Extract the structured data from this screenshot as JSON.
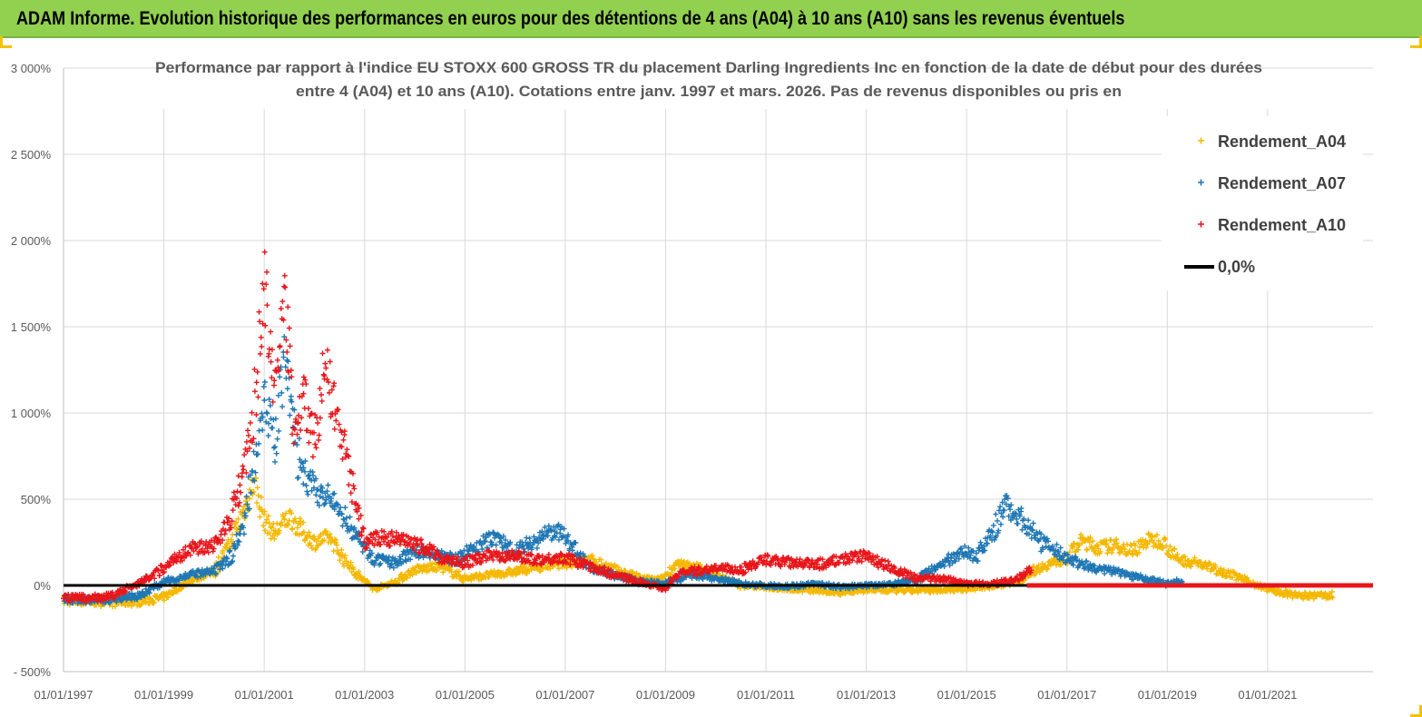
{
  "banner": {
    "title": "ADAM Informe. Evolution historique des performances en euros pour des détentions de 4 ans (A04) à 10 ans (A10) sans les revenus éventuels"
  },
  "colors": {
    "banner": "#92d050",
    "a04": "#f5b800",
    "a07": "#1f77b4",
    "a10": "#e8161b",
    "zero": "#000000"
  },
  "chart_data": {
    "type": "scatter",
    "title_lines": [
      "Performance par rapport à l'indice EU STOXX 600 GROSS TR  du placement Darling Ingredients Inc en fonction de la date de début pour des durées",
      "entre 4 (A04) et 10 ans (A10).  Cotations entre janv. 1997 et mars. 2026.  Pas de  revenus disponibles ou pris en"
    ],
    "xlim": [
      1997.0,
      2023.1
    ],
    "ylim": [
      -500,
      3000
    ],
    "y_ticks": [
      {
        "value": -500,
        "label": "- 500%"
      },
      {
        "value": 0,
        "label": "0%"
      },
      {
        "value": 500,
        "label": "500%"
      },
      {
        "value": 1000,
        "label": "1 000%"
      },
      {
        "value": 1500,
        "label": "1 500%"
      },
      {
        "value": 2000,
        "label": "2 000%"
      },
      {
        "value": 2500,
        "label": "2 500%"
      },
      {
        "value": 3000,
        "label": "3 000%"
      }
    ],
    "x_ticks": [
      {
        "value": 1997,
        "label": "01/01/1997"
      },
      {
        "value": 1999,
        "label": "01/01/1999"
      },
      {
        "value": 2001,
        "label": "01/01/2001"
      },
      {
        "value": 2003,
        "label": "01/01/2003"
      },
      {
        "value": 2005,
        "label": "01/01/2005"
      },
      {
        "value": 2007,
        "label": "01/01/2007"
      },
      {
        "value": 2009,
        "label": "01/01/2009"
      },
      {
        "value": 2011,
        "label": "01/01/2011"
      },
      {
        "value": 2013,
        "label": "01/01/2013"
      },
      {
        "value": 2015,
        "label": "01/01/2015"
      },
      {
        "value": 2017,
        "label": "01/01/2017"
      },
      {
        "value": 2019,
        "label": "01/01/2019"
      },
      {
        "value": 2021,
        "label": "01/01/2021"
      }
    ],
    "series": [
      {
        "name": "Rendement_A04",
        "color_key": "a04",
        "x": [
          1997.0,
          1997.5,
          1998.0,
          1998.5,
          1999.0,
          1999.5,
          2000.0,
          2000.4,
          2000.8,
          2001.0,
          2001.2,
          2001.5,
          2001.8,
          2002.0,
          2002.3,
          2002.6,
          2002.9,
          2003.2,
          2003.6,
          2004.0,
          2004.5,
          2005.0,
          2005.5,
          2006.0,
          2006.5,
          2007.0,
          2007.5,
          2008.0,
          2008.5,
          2008.9,
          2009.2,
          2009.6,
          2010.0,
          2010.5,
          2011.0,
          2011.5,
          2012.0,
          2012.5,
          2013.0,
          2013.5,
          2014.0,
          2014.5,
          2015.0,
          2015.5,
          2016.0,
          2016.3,
          2016.6,
          2017.0,
          2017.3,
          2017.6,
          2018.0,
          2018.3,
          2018.6,
          2018.9,
          2019.2,
          2019.6,
          2020.0,
          2020.4,
          2020.8,
          2021.2,
          2021.6,
          2022.0,
          2022.3
        ],
        "y": [
          -90,
          -95,
          -100,
          -95,
          -70,
          30,
          80,
          280,
          600,
          380,
          300,
          400,
          300,
          250,
          280,
          150,
          50,
          -20,
          20,
          90,
          110,
          40,
          60,
          80,
          110,
          130,
          150,
          90,
          40,
          30,
          120,
          110,
          60,
          0,
          -10,
          -20,
          -30,
          -40,
          -25,
          -30,
          -30,
          -25,
          -20,
          -5,
          20,
          80,
          120,
          160,
          260,
          220,
          230,
          200,
          260,
          260,
          150,
          130,
          90,
          50,
          0,
          -40,
          -60,
          -60,
          -55
        ]
      },
      {
        "name": "Rendement_A07",
        "color_key": "a07",
        "x": [
          1997.0,
          1997.5,
          1998.0,
          1998.5,
          1999.0,
          1999.5,
          2000.0,
          2000.3,
          2000.6,
          2000.9,
          2001.0,
          2001.2,
          2001.4,
          2001.7,
          2002.0,
          2002.3,
          2002.6,
          2002.9,
          2003.2,
          2003.6,
          2004.0,
          2004.4,
          2004.8,
          2005.2,
          2005.6,
          2006.0,
          2006.4,
          2006.8,
          2007.1,
          2007.5,
          2008.0,
          2008.5,
          2009.0,
          2009.5,
          2010.0,
          2010.5,
          2011.0,
          2011.5,
          2012.0,
          2012.5,
          2013.0,
          2013.5,
          2014.0,
          2014.5,
          2014.9,
          2015.2,
          2015.5,
          2015.8,
          2016.1,
          2016.5,
          2017.0,
          2017.5,
          2018.0,
          2018.5,
          2019.0,
          2019.3
        ],
        "y": [
          -80,
          -85,
          -80,
          -60,
          20,
          60,
          80,
          150,
          350,
          900,
          1100,
          800,
          1300,
          700,
          550,
          500,
          400,
          250,
          150,
          130,
          200,
          180,
          150,
          220,
          280,
          200,
          260,
          320,
          250,
          100,
          60,
          20,
          10,
          60,
          40,
          10,
          0,
          -5,
          10,
          -10,
          0,
          10,
          30,
          120,
          200,
          170,
          300,
          470,
          380,
          250,
          160,
          100,
          80,
          40,
          10,
          30
        ]
      },
      {
        "name": "Rendement_A10",
        "color_key": "a10",
        "x": [
          1997.0,
          1997.5,
          1998.0,
          1998.4,
          1998.8,
          1999.2,
          1999.6,
          2000.0,
          2000.3,
          2000.6,
          2000.8,
          2001.0,
          2001.2,
          2001.4,
          2001.6,
          2001.8,
          2002.0,
          2002.2,
          2002.4,
          2002.6,
          2002.8,
          2003.0,
          2003.4,
          2003.8,
          2004.2,
          2004.6,
          2005.0,
          2005.5,
          2006.0,
          2006.5,
          2007.0,
          2007.5,
          2008.0,
          2008.5,
          2009.0,
          2009.2,
          2009.5,
          2010.0,
          2010.5,
          2011.0,
          2011.5,
          2012.0,
          2012.5,
          2013.0,
          2013.5,
          2014.0,
          2014.5,
          2015.0,
          2015.5,
          2016.0,
          2016.3
        ],
        "y": [
          -70,
          -75,
          -60,
          0,
          60,
          150,
          220,
          230,
          380,
          650,
          1000,
          1800,
          1000,
          1700,
          900,
          1100,
          800,
          1300,
          1000,
          800,
          500,
          250,
          280,
          250,
          220,
          150,
          130,
          180,
          170,
          150,
          160,
          110,
          60,
          20,
          -20,
          60,
          80,
          100,
          90,
          150,
          130,
          120,
          150,
          170,
          100,
          40,
          40,
          10,
          10,
          30,
          100
        ]
      }
    ],
    "zero_line": {
      "name": "0,0%",
      "value": 0
    },
    "flat_red_segment": {
      "x_start": 2016.2,
      "x_end": 2023.1,
      "value": 0
    },
    "legend": [
      {
        "label": "Rendement_A04",
        "color_key": "a04",
        "marker": "+"
      },
      {
        "label": "Rendement_A07",
        "color_key": "a07",
        "marker": "+"
      },
      {
        "label": "Rendement_A10",
        "color_key": "a10",
        "marker": "+"
      },
      {
        "label": "0,0%",
        "color_key": "zero",
        "marker": "line"
      }
    ],
    "legend_position": "top-right"
  }
}
